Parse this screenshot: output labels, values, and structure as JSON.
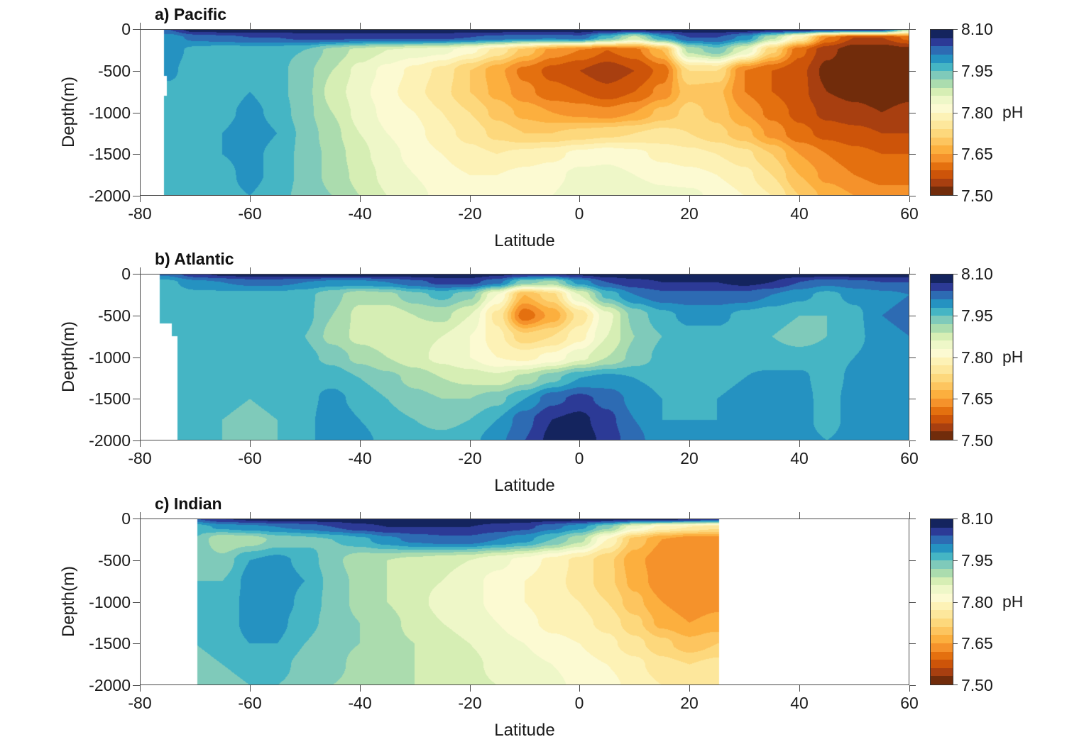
{
  "figure": {
    "background": "#ffffff"
  },
  "axes": {
    "xlabel": "Latitude",
    "ylabel": "Depth(m)",
    "xlim": [
      -80,
      60
    ],
    "ylim": [
      -2000,
      0
    ],
    "x_ticks": [
      -80,
      -60,
      -40,
      -20,
      0,
      20,
      40,
      60
    ],
    "x_tick_labels": [
      "-80",
      "-60",
      "-40",
      "-20",
      "0",
      "20",
      "40",
      "60"
    ],
    "y_ticks": [
      0,
      -500,
      -1000,
      -1500,
      -2000
    ],
    "y_tick_labels": [
      "0",
      "-500",
      "-1000",
      "-1500",
      "-2000"
    ]
  },
  "colorbar": {
    "title": "pH",
    "min": 7.5,
    "max": 8.1,
    "band_step": 0.03,
    "tick_labels": [
      "8.10",
      "7.95",
      "7.80",
      "7.65",
      "7.50"
    ],
    "tick_fractions_from_top": [
      0,
      0.25,
      0.5,
      0.75,
      1
    ],
    "colors_low_to_high": [
      "#712c0b",
      "#a83f10",
      "#cd5409",
      "#e4700f",
      "#f5922b",
      "#fcaf3e",
      "#fdc55f",
      "#fdd87c",
      "#fde79c",
      "#fdf2b6",
      "#fcfad2",
      "#eef7c8",
      "#d6eeb4",
      "#abdcae",
      "#7fcaba",
      "#45b5c4",
      "#2592c1",
      "#2d6bb3",
      "#2c3a96",
      "#14245e"
    ]
  },
  "chart_data": [
    {
      "type": "heatmap",
      "subtype": "filled-contour-section",
      "id": "pacific",
      "title": "a) Pacific",
      "value_name": "pH",
      "lats": [
        -80,
        -75,
        -70,
        -65,
        -60,
        -55,
        -50,
        -45,
        -40,
        -35,
        -30,
        -25,
        -20,
        -15,
        -10,
        -5,
        0,
        5,
        10,
        15,
        20,
        25,
        30,
        35,
        40,
        45,
        50,
        55,
        60
      ],
      "depths": [
        0,
        -100,
        -250,
        -500,
        -750,
        -1000,
        -1250,
        -1500,
        -1750,
        -2000
      ],
      "lat_data_range": [
        -75.6,
        60
      ],
      "masks": [
        {
          "lat_max": -75.1,
          "depth_top": -560,
          "depth_bottom": -800
        }
      ],
      "ph_grid": [
        [
          8.04,
          8.04,
          8.09,
          8.09,
          8.09,
          8.09,
          8.09,
          8.09,
          8.09,
          8.09,
          8.09,
          8.09,
          8.09,
          8.09,
          8.09,
          8.09,
          8.09,
          8.09,
          8.09,
          8.09,
          8.09,
          8.09,
          8.09,
          8.09,
          8.09,
          8.08,
          8.08,
          8.07,
          7.9
        ],
        [
          7.99,
          7.99,
          8.02,
          8.03,
          8.04,
          8.04,
          8.05,
          8.05,
          8.05,
          8.05,
          8.05,
          8.05,
          8.04,
          8.03,
          8.02,
          8.02,
          8.03,
          7.96,
          7.88,
          7.98,
          8.04,
          8.04,
          8.0,
          7.9,
          7.78,
          7.62,
          7.56,
          7.56,
          7.6
        ],
        [
          8.0,
          8.0,
          7.97,
          7.96,
          7.96,
          7.96,
          7.95,
          7.91,
          7.88,
          7.86,
          7.85,
          7.84,
          7.81,
          7.76,
          7.7,
          7.64,
          7.62,
          7.59,
          7.61,
          7.68,
          7.9,
          7.94,
          7.86,
          7.72,
          7.6,
          7.54,
          7.51,
          7.51,
          7.52
        ],
        [
          7.99,
          7.99,
          7.96,
          7.96,
          7.97,
          7.96,
          7.93,
          7.89,
          7.85,
          7.82,
          7.79,
          7.76,
          7.71,
          7.66,
          7.61,
          7.58,
          7.56,
          7.54,
          7.56,
          7.6,
          7.74,
          7.74,
          7.62,
          7.59,
          7.57,
          7.52,
          7.51,
          7.5,
          7.51
        ],
        [
          7.97,
          7.97,
          7.96,
          7.96,
          7.98,
          7.96,
          7.93,
          7.88,
          7.84,
          7.81,
          7.78,
          7.75,
          7.71,
          7.67,
          7.63,
          7.6,
          7.59,
          7.57,
          7.59,
          7.63,
          7.7,
          7.69,
          7.62,
          7.59,
          7.57,
          7.53,
          7.52,
          7.51,
          7.52
        ],
        [
          7.96,
          7.96,
          7.96,
          7.97,
          7.99,
          7.97,
          7.93,
          7.89,
          7.85,
          7.82,
          7.8,
          7.77,
          7.74,
          7.7,
          7.67,
          7.65,
          7.64,
          7.63,
          7.65,
          7.69,
          7.72,
          7.7,
          7.65,
          7.61,
          7.58,
          7.55,
          7.54,
          7.53,
          7.54
        ],
        [
          7.96,
          7.96,
          7.97,
          7.98,
          8.0,
          7.98,
          7.94,
          7.9,
          7.86,
          7.83,
          7.81,
          7.78,
          7.76,
          7.73,
          7.71,
          7.71,
          7.72,
          7.73,
          7.74,
          7.75,
          7.74,
          7.72,
          7.69,
          7.64,
          7.6,
          7.58,
          7.57,
          7.56,
          7.56
        ],
        [
          7.96,
          7.96,
          7.97,
          7.98,
          7.99,
          7.97,
          7.94,
          7.91,
          7.87,
          7.84,
          7.82,
          7.8,
          7.78,
          7.77,
          7.78,
          7.79,
          7.81,
          7.82,
          7.81,
          7.79,
          7.78,
          7.77,
          7.75,
          7.71,
          7.65,
          7.62,
          7.6,
          7.59,
          7.59
        ],
        [
          7.96,
          7.96,
          7.97,
          7.97,
          7.99,
          7.97,
          7.94,
          7.91,
          7.88,
          7.85,
          7.83,
          7.81,
          7.8,
          7.8,
          7.81,
          7.82,
          7.84,
          7.84,
          7.83,
          7.82,
          7.81,
          7.8,
          7.78,
          7.74,
          7.68,
          7.64,
          7.62,
          7.61,
          7.61
        ],
        [
          7.96,
          7.96,
          7.96,
          7.97,
          7.98,
          7.96,
          7.94,
          7.92,
          7.89,
          7.86,
          7.84,
          7.82,
          7.81,
          7.81,
          7.83,
          7.83,
          7.85,
          7.85,
          7.85,
          7.84,
          7.84,
          7.82,
          7.8,
          7.77,
          7.71,
          7.67,
          7.65,
          7.63,
          7.63
        ]
      ]
    },
    {
      "type": "heatmap",
      "subtype": "filled-contour-section",
      "id": "atlantic",
      "title": "b) Atlantic",
      "value_name": "pH",
      "lats": [
        -80,
        -75,
        -70,
        -65,
        -60,
        -55,
        -50,
        -45,
        -40,
        -35,
        -30,
        -25,
        -20,
        -15,
        -10,
        -5,
        0,
        5,
        10,
        15,
        20,
        25,
        30,
        35,
        40,
        45,
        50,
        55,
        60
      ],
      "depths": [
        0,
        -100,
        -250,
        -500,
        -750,
        -1000,
        -1250,
        -1500,
        -1750,
        -2000
      ],
      "lat_data_range": [
        -76.4,
        60
      ],
      "masks": [
        {
          "lat_max": -74.2,
          "depth_top": -600,
          "depth_bottom": -2000
        },
        {
          "lat_max": -73.2,
          "depth_top": -750,
          "depth_bottom": -2000
        }
      ],
      "ph_grid": [
        [
          8.02,
          8.02,
          8.06,
          8.08,
          8.09,
          8.09,
          8.09,
          8.09,
          8.09,
          8.09,
          8.09,
          8.09,
          8.09,
          8.08,
          8.07,
          8.07,
          8.08,
          8.09,
          8.09,
          8.09,
          8.09,
          8.09,
          8.09,
          8.09,
          8.09,
          8.09,
          8.09,
          8.09,
          8.09
        ],
        [
          7.97,
          7.97,
          8.0,
          8.01,
          8.02,
          8.02,
          8.01,
          8.0,
          8.0,
          8.01,
          8.03,
          8.05,
          8.05,
          8.02,
          7.93,
          7.91,
          7.99,
          8.04,
          8.06,
          8.07,
          8.07,
          8.07,
          8.08,
          8.07,
          8.04,
          8.02,
          8.03,
          8.04,
          8.04
        ],
        [
          7.96,
          7.96,
          7.97,
          7.97,
          7.97,
          7.97,
          7.96,
          7.93,
          7.9,
          7.91,
          7.94,
          7.96,
          7.93,
          7.83,
          7.68,
          7.73,
          7.86,
          7.96,
          8.01,
          8.03,
          8.03,
          8.03,
          8.03,
          8.01,
          7.99,
          7.97,
          7.99,
          8.0,
          8.01
        ],
        [
          7.96,
          7.96,
          7.97,
          7.97,
          7.97,
          7.97,
          7.96,
          7.92,
          7.88,
          7.87,
          7.89,
          7.9,
          7.86,
          7.76,
          7.6,
          7.66,
          7.75,
          7.85,
          7.93,
          7.97,
          7.99,
          7.99,
          7.97,
          7.96,
          7.95,
          7.95,
          7.97,
          8.01,
          8.02
        ],
        [
          7.96,
          7.96,
          7.97,
          7.97,
          7.97,
          7.96,
          7.95,
          7.91,
          7.88,
          7.87,
          7.87,
          7.86,
          7.83,
          7.78,
          7.72,
          7.74,
          7.79,
          7.86,
          7.92,
          7.95,
          7.97,
          7.97,
          7.96,
          7.95,
          7.94,
          7.95,
          7.97,
          8.0,
          8.01
        ],
        [
          7.96,
          7.96,
          7.97,
          7.97,
          7.96,
          7.96,
          7.96,
          7.94,
          7.91,
          7.89,
          7.87,
          7.85,
          7.83,
          7.8,
          7.79,
          7.81,
          7.85,
          7.89,
          7.93,
          7.96,
          7.97,
          7.97,
          7.97,
          7.96,
          7.96,
          7.96,
          7.98,
          8.0,
          8.01
        ],
        [
          7.96,
          7.96,
          7.97,
          7.96,
          7.96,
          7.96,
          7.97,
          7.97,
          7.95,
          7.93,
          7.91,
          7.89,
          7.88,
          7.87,
          7.9,
          7.94,
          7.98,
          7.99,
          7.98,
          7.97,
          7.97,
          7.97,
          7.98,
          7.99,
          7.99,
          7.96,
          7.99,
          8.0,
          8.0
        ],
        [
          7.96,
          7.96,
          7.96,
          7.96,
          7.95,
          7.96,
          7.97,
          7.99,
          7.97,
          7.95,
          7.93,
          7.92,
          7.92,
          7.94,
          7.98,
          8.03,
          8.05,
          8.03,
          8.0,
          7.98,
          7.97,
          7.98,
          7.99,
          8.0,
          8.0,
          7.96,
          8.0,
          8.0,
          8.0
        ],
        [
          7.96,
          7.96,
          7.96,
          7.95,
          7.94,
          7.95,
          7.97,
          8.0,
          7.98,
          7.96,
          7.95,
          7.94,
          7.95,
          7.98,
          8.03,
          8.07,
          8.08,
          8.05,
          8.01,
          7.98,
          7.98,
          7.98,
          7.99,
          8.0,
          8.0,
          7.96,
          8.0,
          8.0,
          8.0
        ],
        [
          7.96,
          7.96,
          7.96,
          7.95,
          7.94,
          7.95,
          7.97,
          8.0,
          7.99,
          7.97,
          7.96,
          7.96,
          7.97,
          8.0,
          8.04,
          8.08,
          8.09,
          8.06,
          8.02,
          7.99,
          7.98,
          7.98,
          7.99,
          8.0,
          8.0,
          7.98,
          8.0,
          8.0,
          8.0
        ]
      ]
    },
    {
      "type": "heatmap",
      "subtype": "filled-contour-section",
      "id": "indian",
      "title": "c) Indian",
      "value_name": "pH",
      "lats": [
        -80,
        -75,
        -70,
        -65,
        -60,
        -55,
        -50,
        -45,
        -40,
        -35,
        -30,
        -25,
        -20,
        -15,
        -10,
        -5,
        0,
        5,
        10,
        15,
        20,
        25,
        30,
        35,
        40,
        45,
        50,
        55,
        60
      ],
      "depths": [
        0,
        -100,
        -250,
        -500,
        -750,
        -1000,
        -1250,
        -1500,
        -1750,
        -2000
      ],
      "lat_data_range": [
        -69.5,
        25.4
      ],
      "masks": [],
      "ph_grid": [
        [
          8.04,
          8.04,
          8.04,
          8.07,
          8.08,
          8.09,
          8.09,
          8.09,
          8.09,
          8.09,
          8.09,
          8.09,
          8.09,
          8.09,
          8.09,
          8.09,
          8.09,
          8.09,
          8.09,
          8.09,
          8.08,
          8.07,
          8.07,
          8.07,
          8.07,
          8.07,
          8.07,
          8.07,
          8.07
        ],
        [
          7.96,
          7.96,
          7.96,
          7.99,
          8.0,
          8.01,
          8.02,
          8.04,
          8.06,
          8.07,
          8.07,
          8.07,
          8.07,
          8.06,
          8.05,
          8.02,
          7.99,
          7.93,
          7.84,
          7.79,
          7.77,
          7.75,
          7.75,
          7.75,
          7.75,
          7.75,
          7.75,
          7.75,
          7.75
        ],
        [
          7.95,
          7.95,
          7.95,
          7.89,
          7.9,
          7.93,
          7.94,
          7.95,
          7.97,
          8.0,
          8.02,
          8.03,
          8.03,
          8.01,
          7.99,
          7.95,
          7.9,
          7.8,
          7.7,
          7.65,
          7.63,
          7.63,
          7.63,
          7.63,
          7.63,
          7.63,
          7.63,
          7.63,
          7.63
        ],
        [
          7.95,
          7.95,
          7.95,
          7.93,
          7.98,
          7.99,
          7.97,
          7.93,
          7.9,
          7.89,
          7.88,
          7.87,
          7.86,
          7.84,
          7.82,
          7.79,
          7.76,
          7.72,
          7.66,
          7.63,
          7.62,
          7.62,
          7.62,
          7.62,
          7.62,
          7.62,
          7.62,
          7.62,
          7.62
        ],
        [
          7.95,
          7.95,
          7.95,
          7.95,
          7.99,
          8.0,
          7.98,
          7.94,
          7.91,
          7.89,
          7.87,
          7.86,
          7.84,
          7.82,
          7.8,
          7.78,
          7.76,
          7.72,
          7.67,
          7.63,
          7.62,
          7.63,
          7.63,
          7.63,
          7.63,
          7.63,
          7.63,
          7.63,
          7.63
        ],
        [
          7.95,
          7.95,
          7.95,
          7.96,
          7.99,
          8.0,
          7.97,
          7.94,
          7.91,
          7.89,
          7.87,
          7.85,
          7.84,
          7.82,
          7.8,
          7.78,
          7.77,
          7.74,
          7.69,
          7.65,
          7.63,
          7.64,
          7.64,
          7.64,
          7.64,
          7.64,
          7.64,
          7.64,
          7.64
        ],
        [
          7.95,
          7.95,
          7.95,
          7.96,
          7.99,
          7.99,
          7.96,
          7.94,
          7.92,
          7.9,
          7.88,
          7.86,
          7.85,
          7.83,
          7.81,
          7.79,
          7.78,
          7.76,
          7.72,
          7.67,
          7.65,
          7.66,
          7.66,
          7.66,
          7.66,
          7.66,
          7.66,
          7.66,
          7.66
        ],
        [
          7.95,
          7.95,
          7.95,
          7.96,
          7.98,
          7.98,
          7.95,
          7.93,
          7.92,
          7.9,
          7.89,
          7.87,
          7.86,
          7.84,
          7.83,
          7.81,
          7.8,
          7.78,
          7.75,
          7.72,
          7.69,
          7.71,
          7.71,
          7.71,
          7.71,
          7.71,
          7.71,
          7.71,
          7.71
        ],
        [
          7.94,
          7.94,
          7.94,
          7.95,
          7.96,
          7.96,
          7.94,
          7.93,
          7.91,
          7.9,
          7.89,
          7.88,
          7.87,
          7.85,
          7.84,
          7.83,
          7.81,
          7.8,
          7.78,
          7.75,
          7.74,
          7.75,
          7.75,
          7.75,
          7.75,
          7.75,
          7.75,
          7.75,
          7.75
        ],
        [
          7.94,
          7.94,
          7.94,
          7.94,
          7.95,
          7.95,
          7.94,
          7.92,
          7.91,
          7.9,
          7.89,
          7.88,
          7.87,
          7.86,
          7.85,
          7.84,
          7.82,
          7.81,
          7.79,
          7.77,
          7.76,
          7.77,
          7.77,
          7.77,
          7.77,
          7.77,
          7.77,
          7.77,
          7.77
        ]
      ]
    }
  ]
}
